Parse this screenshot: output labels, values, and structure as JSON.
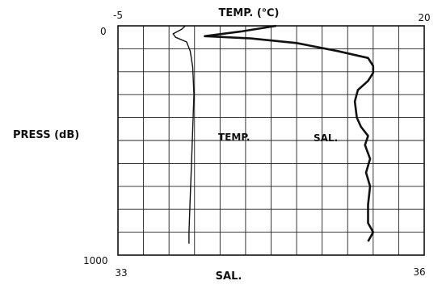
{
  "chart_data": {
    "type": "line",
    "title": "",
    "ylabel": "PRESS (dB)",
    "y_axis": {
      "range": [
        0,
        1000
      ],
      "tick_labels": [
        "0",
        "1000"
      ],
      "inverted": true
    },
    "temp_axis": {
      "label": "TEMP. (℃)",
      "range": [
        -5,
        20
      ],
      "tick_labels": [
        "-5",
        "20"
      ],
      "position": "top"
    },
    "sal_axis": {
      "label": "SAL.",
      "range": [
        33,
        36
      ],
      "tick_labels": [
        "33",
        "36"
      ],
      "position": "bottom"
    },
    "grid": true,
    "series": [
      {
        "name": "TEMP.",
        "axis": "temp",
        "color": "#111111",
        "points": [
          [
            0.5,
            0
          ],
          [
            0.2,
            15
          ],
          [
            -0.5,
            35
          ],
          [
            -0.3,
            50
          ],
          [
            0.6,
            70
          ],
          [
            0.9,
            110
          ],
          [
            1.1,
            180
          ],
          [
            1.2,
            300
          ],
          [
            1.1,
            450
          ],
          [
            1.0,
            600
          ],
          [
            0.9,
            750
          ],
          [
            0.8,
            900
          ],
          [
            0.8,
            950
          ]
        ]
      },
      {
        "name": "SAL.",
        "axis": "sal",
        "color": "#111111",
        "points": [
          [
            34.55,
            0
          ],
          [
            34.2,
            25
          ],
          [
            33.85,
            45
          ],
          [
            34.3,
            55
          ],
          [
            34.75,
            75
          ],
          [
            35.15,
            110
          ],
          [
            35.45,
            140
          ],
          [
            35.5,
            175
          ],
          [
            35.5,
            205
          ],
          [
            35.45,
            240
          ],
          [
            35.35,
            280
          ],
          [
            35.32,
            330
          ],
          [
            35.34,
            400
          ],
          [
            35.38,
            440
          ],
          [
            35.45,
            480
          ],
          [
            35.42,
            520
          ],
          [
            35.47,
            580
          ],
          [
            35.43,
            640
          ],
          [
            35.47,
            700
          ],
          [
            35.45,
            780
          ],
          [
            35.45,
            860
          ],
          [
            35.5,
            900
          ],
          [
            35.45,
            940
          ]
        ]
      }
    ],
    "annotations": [
      "TEMP.",
      "SAL."
    ]
  }
}
